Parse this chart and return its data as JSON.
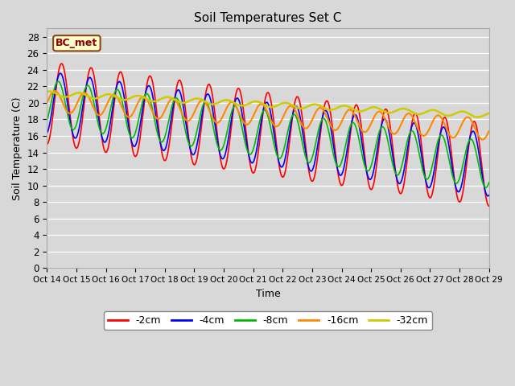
{
  "title": "Soil Temperatures Set C",
  "xlabel": "Time",
  "ylabel": "Soil Temperature (C)",
  "ylim": [
    0,
    29
  ],
  "yticks": [
    0,
    2,
    4,
    6,
    8,
    10,
    12,
    14,
    16,
    18,
    20,
    22,
    24,
    26,
    28
  ],
  "background_color": "#d8d8d8",
  "plot_bg": "#d8d8d8",
  "legend_label": "BC_met",
  "legend_bg": "#ffffcc",
  "legend_border": "#8B4513",
  "series": [
    {
      "label": "-2cm",
      "color": "#ff0000",
      "lw": 1.2
    },
    {
      "label": "-4cm",
      "color": "#0000ff",
      "lw": 1.2
    },
    {
      "label": "-8cm",
      "color": "#00bb00",
      "lw": 1.2
    },
    {
      "label": "-16cm",
      "color": "#ff8800",
      "lw": 1.5
    },
    {
      "label": "-32cm",
      "color": "#cccc00",
      "lw": 1.8
    }
  ],
  "xtick_labels": [
    "Oct 14",
    "Oct 15",
    "Oct 16",
    "Oct 17",
    "Oct 18",
    "Oct 19",
    "Oct 20",
    "Oct 21",
    "Oct 22",
    "Oct 23",
    "Oct 24",
    "Oct 25",
    "Oct 26",
    "Oct 27",
    "Oct 28",
    "Oct 29"
  ],
  "n_points": 720
}
